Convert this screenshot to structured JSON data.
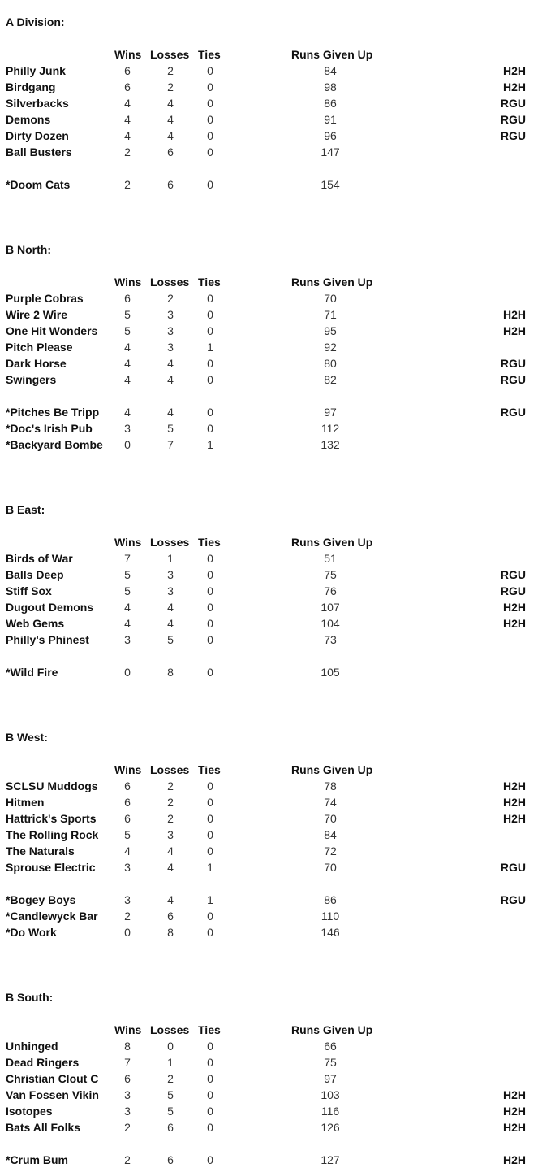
{
  "headers": {
    "wins": "Wins",
    "losses": "Losses",
    "ties": "Ties",
    "runs": "Runs Given Up"
  },
  "divisions": [
    {
      "title": "A Division:",
      "teams": [
        {
          "name": "Philly Junk",
          "w": "6",
          "l": "2",
          "t": "0",
          "r": "84",
          "tag": "H2H"
        },
        {
          "name": "Birdgang",
          "w": "6",
          "l": "2",
          "t": "0",
          "r": "98",
          "tag": "H2H"
        },
        {
          "name": "Silverbacks",
          "w": "4",
          "l": "4",
          "t": "0",
          "r": "86",
          "tag": "RGU"
        },
        {
          "name": "Demons",
          "w": "4",
          "l": "4",
          "t": "0",
          "r": "91",
          "tag": "RGU"
        },
        {
          "name": "Dirty Dozen",
          "w": "4",
          "l": "4",
          "t": "0",
          "r": "96",
          "tag": "RGU"
        },
        {
          "name": "Ball Busters",
          "w": "2",
          "l": "6",
          "t": "0",
          "r": "147",
          "tag": ""
        }
      ],
      "extra": [
        {
          "name": "*Doom Cats",
          "w": "2",
          "l": "6",
          "t": "0",
          "r": "154",
          "tag": ""
        }
      ]
    },
    {
      "title": "B North:",
      "teams": [
        {
          "name": "Purple Cobras",
          "w": "6",
          "l": "2",
          "t": "0",
          "r": "70",
          "tag": ""
        },
        {
          "name": "Wire 2 Wire",
          "w": "5",
          "l": "3",
          "t": "0",
          "r": "71",
          "tag": "H2H"
        },
        {
          "name": "One Hit Wonders",
          "w": "5",
          "l": "3",
          "t": "0",
          "r": "95",
          "tag": "H2H"
        },
        {
          "name": "Pitch Please",
          "w": "4",
          "l": "3",
          "t": "1",
          "r": "92",
          "tag": ""
        },
        {
          "name": "Dark Horse",
          "w": "4",
          "l": "4",
          "t": "0",
          "r": "80",
          "tag": "RGU"
        },
        {
          "name": "Swingers",
          "w": "4",
          "l": "4",
          "t": "0",
          "r": "82",
          "tag": "RGU"
        }
      ],
      "extra": [
        {
          "name": "*Pitches Be Tripp",
          "w": "4",
          "l": "4",
          "t": "0",
          "r": "97",
          "tag": "RGU"
        },
        {
          "name": "*Doc's Irish Pub",
          "w": "3",
          "l": "5",
          "t": "0",
          "r": "112",
          "tag": ""
        },
        {
          "name": "*Backyard Bombe",
          "w": "0",
          "l": "7",
          "t": "1",
          "r": "132",
          "tag": ""
        }
      ]
    },
    {
      "title": "B East:",
      "teams": [
        {
          "name": "Birds of War",
          "w": "7",
          "l": "1",
          "t": "0",
          "r": "51",
          "tag": ""
        },
        {
          "name": "Balls Deep",
          "w": "5",
          "l": "3",
          "t": "0",
          "r": "75",
          "tag": "RGU"
        },
        {
          "name": "Stiff Sox",
          "w": "5",
          "l": "3",
          "t": "0",
          "r": "76",
          "tag": "RGU"
        },
        {
          "name": "Dugout Demons",
          "w": "4",
          "l": "4",
          "t": "0",
          "r": "107",
          "tag": "H2H"
        },
        {
          "name": "Web Gems",
          "w": "4",
          "l": "4",
          "t": "0",
          "r": "104",
          "tag": "H2H"
        },
        {
          "name": "Philly's Phinest",
          "w": "3",
          "l": "5",
          "t": "0",
          "r": "73",
          "tag": ""
        }
      ],
      "extra": [
        {
          "name": "*Wild Fire",
          "w": "0",
          "l": "8",
          "t": "0",
          "r": "105",
          "tag": ""
        }
      ]
    },
    {
      "title": "B West:",
      "teams": [
        {
          "name": "SCLSU Muddogs",
          "w": "6",
          "l": "2",
          "t": "0",
          "r": "78",
          "tag": "H2H"
        },
        {
          "name": "Hitmen",
          "w": "6",
          "l": "2",
          "t": "0",
          "r": "74",
          "tag": "H2H"
        },
        {
          "name": "Hattrick's Sports",
          "w": "6",
          "l": "2",
          "t": "0",
          "r": "70",
          "tag": "H2H"
        },
        {
          "name": "The Rolling Rock",
          "w": "5",
          "l": "3",
          "t": "0",
          "r": "84",
          "tag": ""
        },
        {
          "name": "The Naturals",
          "w": "4",
          "l": "4",
          "t": "0",
          "r": "72",
          "tag": ""
        },
        {
          "name": "Sprouse Electric",
          "w": "3",
          "l": "4",
          "t": "1",
          "r": "70",
          "tag": "RGU"
        }
      ],
      "extra": [
        {
          "name": "*Bogey Boys",
          "w": "3",
          "l": "4",
          "t": "1",
          "r": "86",
          "tag": "RGU"
        },
        {
          "name": "*Candlewyck Bar",
          "w": "2",
          "l": "6",
          "t": "0",
          "r": "110",
          "tag": ""
        },
        {
          "name": "*Do Work",
          "w": "0",
          "l": "8",
          "t": "0",
          "r": "146",
          "tag": ""
        }
      ]
    },
    {
      "title": "B South:",
      "teams": [
        {
          "name": "Unhinged",
          "w": "8",
          "l": "0",
          "t": "0",
          "r": "66",
          "tag": ""
        },
        {
          "name": "Dead Ringers",
          "w": "7",
          "l": "1",
          "t": "0",
          "r": "75",
          "tag": ""
        },
        {
          "name": "Christian Clout C",
          "w": "6",
          "l": "2",
          "t": "0",
          "r": "97",
          "tag": ""
        },
        {
          "name": "Van Fossen Vikin",
          "w": "3",
          "l": "5",
          "t": "0",
          "r": "103",
          "tag": "H2H"
        },
        {
          "name": "Isotopes",
          "w": "3",
          "l": "5",
          "t": "0",
          "r": "116",
          "tag": "H2H"
        },
        {
          "name": "Bats All Folks",
          "w": "2",
          "l": "6",
          "t": "0",
          "r": "126",
          "tag": "H2H"
        }
      ],
      "extra": [
        {
          "name": "*Crum Bum",
          "w": "2",
          "l": "6",
          "t": "0",
          "r": "127",
          "tag": "H2H"
        }
      ]
    }
  ]
}
